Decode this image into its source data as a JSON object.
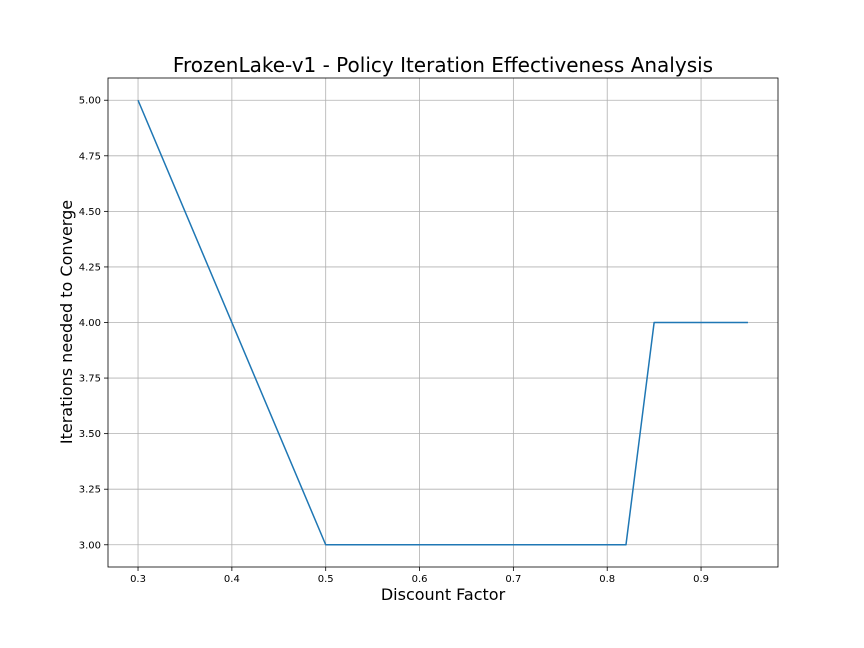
{
  "chart_data": {
    "type": "line",
    "title": "FrozenLake-v1 - Policy Iteration Effectiveness Analysis",
    "xlabel": "Discount Factor",
    "ylabel": "Iterations needed to Converge",
    "xlim": [
      0.268,
      0.982
    ],
    "ylim": [
      2.9,
      5.1
    ],
    "xticks": [
      0.3,
      0.4,
      0.5,
      0.6,
      0.7,
      0.8,
      0.9
    ],
    "xtick_labels": [
      "0.3",
      "0.4",
      "0.5",
      "0.6",
      "0.7",
      "0.8",
      "0.9"
    ],
    "yticks": [
      3.0,
      3.25,
      3.5,
      3.75,
      4.0,
      4.25,
      4.5,
      4.75,
      5.0
    ],
    "ytick_labels": [
      "3.00",
      "3.25",
      "3.50",
      "3.75",
      "4.00",
      "4.25",
      "4.50",
      "4.75",
      "5.00"
    ],
    "grid": true,
    "series": [
      {
        "color": "#1f77b4",
        "x": [
          0.3,
          0.5,
          0.82,
          0.85,
          0.95
        ],
        "y": [
          5,
          3,
          3,
          4,
          4
        ]
      }
    ]
  }
}
